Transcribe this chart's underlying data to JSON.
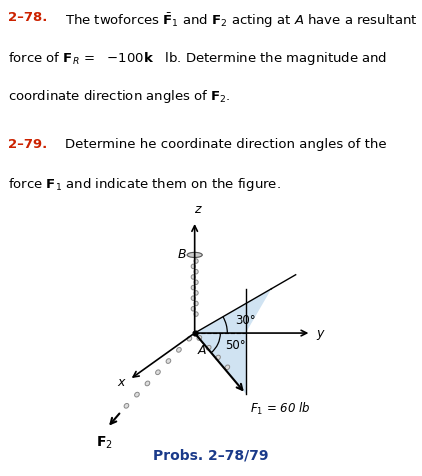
{
  "background_color": "#ffffff",
  "highlight_color": "#c8dff0",
  "chain_color": "#999999",
  "blue_color": "#1a3a8a",
  "red_color": "#cc2200",
  "ox": 0.43,
  "oy": 0.47,
  "z_label": "z",
  "y_label": "y",
  "x_label": "x",
  "A_label": "A",
  "B_label": "B",
  "F1_label": "$F_1$ = 60 lb",
  "F2_label": "$\\mathbf{F}_2$",
  "angle1_label": "30",
  "angle2_label": "50",
  "prob_label": "Probs. 2-78/79"
}
